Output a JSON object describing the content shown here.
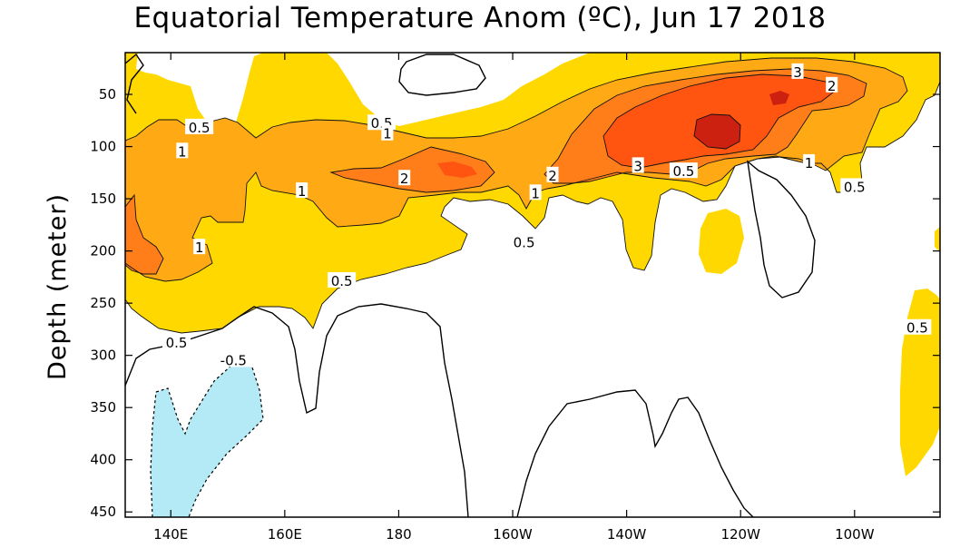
{
  "chart_data": {
    "type": "heatmap",
    "title": "Equatorial Temperature Anom (ºC), Jun 17 2018",
    "ylabel": "Depth (meter)",
    "xlabel": "",
    "x_ticks": [
      "140E",
      "160E",
      "180",
      "160W",
      "140W",
      "120W",
      "100W"
    ],
    "x_tick_values": [
      140,
      160,
      180,
      200,
      220,
      240,
      260
    ],
    "xlim": [
      132,
      275
    ],
    "y_ticks": [
      "50",
      "100",
      "150",
      "200",
      "250",
      "300",
      "350",
      "400",
      "450"
    ],
    "y_tick_values": [
      50,
      100,
      150,
      200,
      250,
      300,
      350,
      400,
      450
    ],
    "ylim": [
      455,
      10
    ],
    "contour_levels": [
      -0.5,
      0.5,
      1,
      2,
      3,
      4
    ],
    "colors": {
      "neg_0_5": "#b3eaf5",
      "pos_0_5": "#ffd800",
      "pos_1": "#ffaa15",
      "pos_2": "#ff7e1a",
      "pos_3": "#ff5510",
      "pos_4": "#cc2010"
    },
    "contour_labels": [
      {
        "text": "0.5",
        "lon": 145,
        "depth": 82
      },
      {
        "text": "1",
        "lon": 142,
        "depth": 105
      },
      {
        "text": "0.5",
        "lon": 177,
        "depth": 78
      },
      {
        "text": "1",
        "lon": 178,
        "depth": 88
      },
      {
        "text": "1",
        "lon": 163,
        "depth": 143
      },
      {
        "text": "2",
        "lon": 181,
        "depth": 131
      },
      {
        "text": "2",
        "lon": 207,
        "depth": 128
      },
      {
        "text": "1",
        "lon": 204,
        "depth": 145
      },
      {
        "text": "0.5",
        "lon": 202,
        "depth": 192
      },
      {
        "text": "3",
        "lon": 222,
        "depth": 119
      },
      {
        "text": "0.5",
        "lon": 230,
        "depth": 124
      },
      {
        "text": "3",
        "lon": 250,
        "depth": 29
      },
      {
        "text": "2",
        "lon": 256,
        "depth": 42
      },
      {
        "text": "1",
        "lon": 252,
        "depth": 116
      },
      {
        "text": "0.5",
        "lon": 260,
        "depth": 139
      },
      {
        "text": "1",
        "lon": 145,
        "depth": 197
      },
      {
        "text": "0.5",
        "lon": 170,
        "depth": 229
      },
      {
        "text": "0.5",
        "lon": 141,
        "depth": 288
      },
      {
        "text": "-0.5",
        "lon": 151,
        "depth": 305
      },
      {
        "text": "0.5",
        "lon": 271,
        "depth": 274
      }
    ]
  }
}
